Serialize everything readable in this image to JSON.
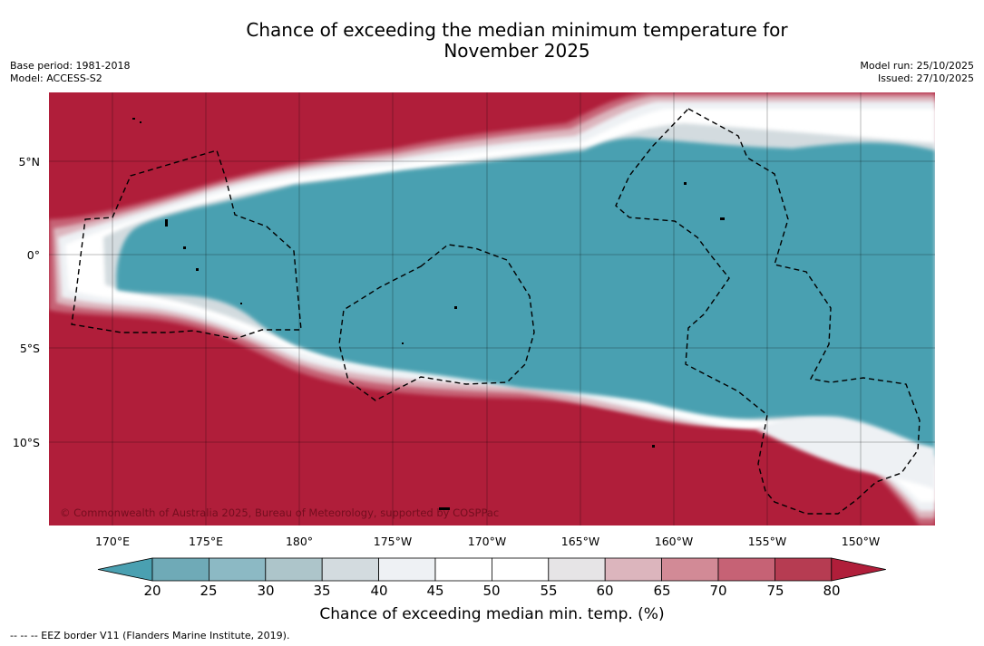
{
  "title_line1": "Chance of exceeding the median minimum temperature for",
  "title_line2": "November 2025",
  "meta_left": {
    "base_period": "Base period: 1981-2018",
    "model": "Model: ACCESS-S2"
  },
  "meta_right": {
    "model_run": "Model run: 25/10/2025",
    "issued": "Issued: 27/10/2025"
  },
  "latitude_labels": [
    "5°N",
    "0°",
    "5°S",
    "10°S"
  ],
  "longitude_labels": [
    "170°E",
    "175°E",
    "180°",
    "175°W",
    "170°W",
    "165°W",
    "160°W",
    "155°W",
    "150°W"
  ],
  "copyright": "© Commonwealth of Australia 2025, Bureau of Meteorology, supported by COSPPac",
  "colorbar": {
    "ticks": [
      "20",
      "25",
      "30",
      "35",
      "40",
      "45",
      "50",
      "55",
      "60",
      "65",
      "70",
      "75",
      "80"
    ],
    "colors": [
      "#4aa0b1",
      "#6faab7",
      "#8cb9c4",
      "#adc5ca",
      "#d3dbdf",
      "#eef1f4",
      "#ffffff",
      "#ffffff",
      "#e6e4e6",
      "#dcb5bd",
      "#d28a96",
      "#c66275",
      "#b63c52",
      "#b01e3a"
    ],
    "label": "Chance of exceeding median min. temp. (%)"
  },
  "footnote": "--  --  -- EEZ border V11 (Flanders Marine Institute, 2019)."
}
